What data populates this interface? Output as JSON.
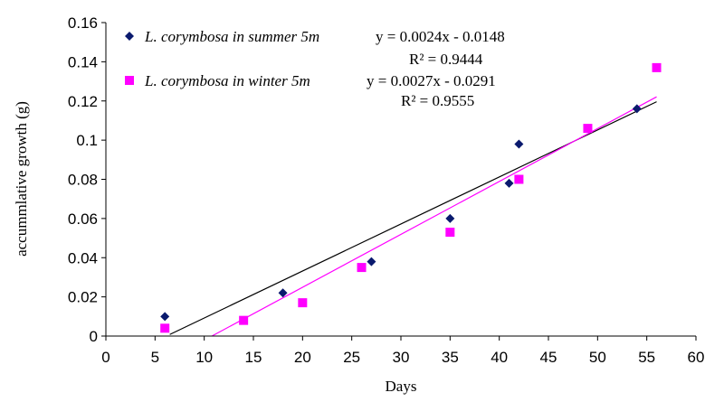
{
  "chart_data": {
    "type": "scatter",
    "xlabel": "Days",
    "ylabel": "accummlative growth (g)",
    "xlim": [
      0,
      60
    ],
    "ylim": [
      0,
      0.16
    ],
    "x_ticks": [
      "0",
      "5",
      "10",
      "15",
      "20",
      "25",
      "30",
      "35",
      "40",
      "45",
      "50",
      "55",
      "60"
    ],
    "y_ticks": [
      "0",
      "0.02",
      "0.04",
      "0.06",
      "0.08",
      "0.1",
      "0.12",
      "0.14",
      "0.16"
    ],
    "grid": false,
    "legend_position": "top-left",
    "series": [
      {
        "name": "L. corymbosa in summer 5m",
        "marker": "diamond",
        "color": "#0a1a6e",
        "points": [
          [
            6,
            0.01
          ],
          [
            18,
            0.022
          ],
          [
            27,
            0.038
          ],
          [
            35,
            0.06
          ],
          [
            41,
            0.078
          ],
          [
            42,
            0.098
          ],
          [
            54,
            0.116
          ]
        ],
        "trendline": {
          "slope": 0.0024,
          "intercept": -0.0148,
          "color": "#000000",
          "x_range": [
            6.5,
            56
          ],
          "equation": "y = 0.0024x - 0.0148",
          "r2": "R² = 0.9444"
        }
      },
      {
        "name": "L. corymbosa in winter 5m",
        "marker": "square",
        "color": "#ff00ff",
        "points": [
          [
            6,
            0.004
          ],
          [
            14,
            0.008
          ],
          [
            20,
            0.017
          ],
          [
            26,
            0.035
          ],
          [
            35,
            0.053
          ],
          [
            42,
            0.08
          ],
          [
            49,
            0.106
          ],
          [
            56,
            0.137
          ]
        ],
        "trendline": {
          "slope": 0.0027,
          "intercept": -0.0291,
          "color": "#ff00ff",
          "x_range": [
            10.8,
            56
          ],
          "equation": "y = 0.0027x - 0.0291",
          "r2": "R² = 0.9555"
        }
      }
    ]
  }
}
